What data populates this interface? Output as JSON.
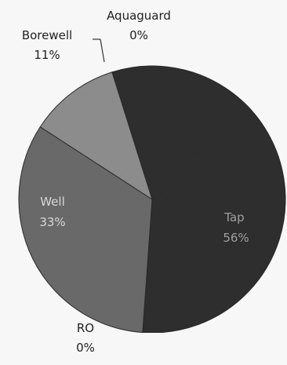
{
  "chart_data": {
    "type": "pie",
    "title": "",
    "categories": [
      "Tap",
      "Well",
      "Borewell",
      "Aquaguard",
      "RO"
    ],
    "values": [
      56,
      33,
      11,
      0,
      0
    ],
    "value_labels": [
      "56%",
      "33%",
      "11%",
      "0%",
      "0%"
    ],
    "colors": [
      "#2e2e2e",
      "#6b6b6b",
      "#8f8f8f",
      "#2e2e2e",
      "#2e2e2e"
    ],
    "legend": "none",
    "labels": [
      {
        "name": "Aquaguard",
        "value_label": "0%",
        "color": "#222222"
      },
      {
        "name": "Borewell",
        "value_label": "11%",
        "color": "#222222"
      },
      {
        "name": "Well",
        "value_label": "33%",
        "color": "#d8d8d8"
      },
      {
        "name": "Tap",
        "value_label": "56%",
        "color": "#a0a0a0"
      },
      {
        "name": "RO",
        "value_label": "0%",
        "color": "#222222"
      }
    ]
  }
}
